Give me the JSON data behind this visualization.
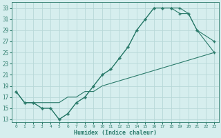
{
  "line1_x": [
    0,
    1,
    2,
    3,
    4,
    5,
    6,
    7,
    8,
    9,
    10,
    11,
    12,
    13,
    14,
    15,
    16,
    17,
    18,
    19,
    20,
    21,
    23
  ],
  "line1_y": [
    18,
    16,
    16,
    15,
    15,
    13,
    14,
    16,
    17,
    19,
    21,
    22,
    24,
    26,
    29,
    31,
    33,
    33,
    33,
    33,
    32,
    29,
    27
  ],
  "line2_x": [
    0,
    1,
    2,
    3,
    4,
    5,
    6,
    7,
    8,
    9,
    10,
    11,
    12,
    13,
    14,
    15,
    16,
    17,
    18,
    19,
    20,
    21,
    23
  ],
  "line2_y": [
    18,
    16,
    16,
    15,
    15,
    13,
    14,
    16,
    17,
    19,
    21,
    22,
    24,
    26,
    29,
    31,
    33,
    33,
    33,
    32,
    32,
    29,
    25
  ],
  "line3_x": [
    0,
    1,
    2,
    3,
    4,
    5,
    6,
    7,
    8,
    9,
    10,
    23
  ],
  "line3_y": [
    18,
    16,
    16,
    16,
    16,
    16,
    17,
    17,
    18,
    18,
    19,
    25
  ],
  "line_color": "#2a7a6a",
  "bg_color": "#d6eeee",
  "grid_color": "#b8d8d8",
  "xlabel": "Humidex (Indice chaleur)",
  "xlim": [
    -0.5,
    23.5
  ],
  "ylim": [
    12.5,
    34
  ],
  "yticks": [
    13,
    15,
    17,
    19,
    21,
    23,
    25,
    27,
    29,
    31,
    33
  ],
  "xticks": [
    0,
    1,
    2,
    3,
    4,
    5,
    6,
    7,
    8,
    9,
    10,
    11,
    12,
    13,
    14,
    15,
    16,
    17,
    18,
    19,
    20,
    21,
    22,
    23
  ]
}
